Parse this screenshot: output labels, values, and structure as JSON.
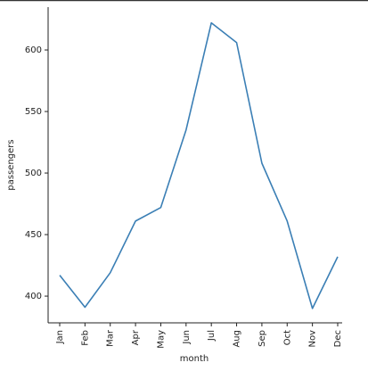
{
  "chart_data": {
    "type": "line",
    "x_label": "month",
    "y_label": "passengers",
    "categories": [
      "Jan",
      "Feb",
      "Mar",
      "Apr",
      "May",
      "Jun",
      "Jul",
      "Aug",
      "Sep",
      "Oct",
      "Nov",
      "Dec"
    ],
    "values": [
      417,
      391,
      419,
      461,
      472,
      535,
      622,
      606,
      508,
      461,
      390,
      432
    ],
    "color": "#3b7fb5",
    "ylim": [
      378.3,
      634.8
    ],
    "yticks": [
      400,
      450,
      500,
      550,
      600
    ]
  }
}
